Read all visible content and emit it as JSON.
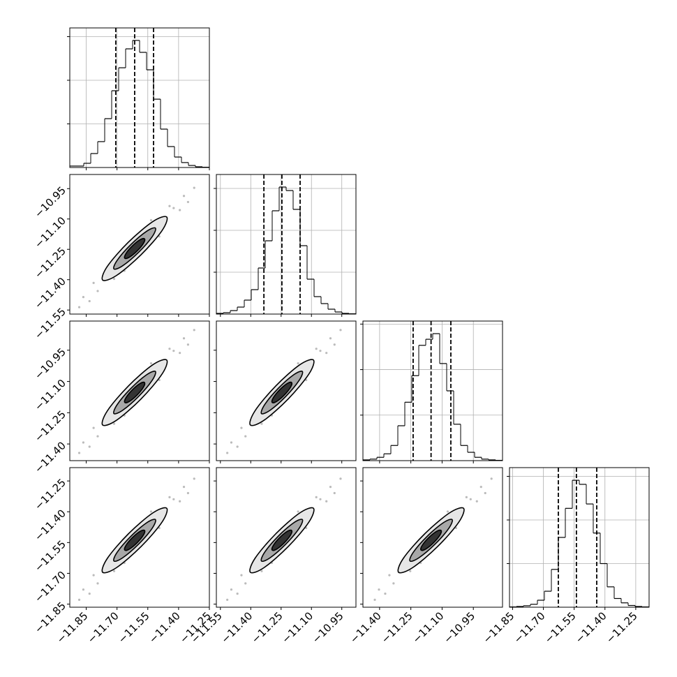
{
  "chart_data": {
    "type": "corner",
    "color": "#000000",
    "grid": true,
    "parameters": [
      {
        "lim": [
          -11.93,
          -11.25
        ],
        "ticks": [
          {
            "value": -11.85,
            "label": "−11.85"
          },
          {
            "value": -11.7,
            "label": "−11.70"
          },
          {
            "value": -11.55,
            "label": "−11.55"
          },
          {
            "value": -11.4,
            "label": "−11.40"
          },
          {
            "value": -11.25,
            "label": "−11.25"
          }
        ]
      },
      {
        "lim": [
          -11.57,
          -10.88
        ],
        "ticks": [
          {
            "value": -11.55,
            "label": "−11.55"
          },
          {
            "value": -11.4,
            "label": "−11.40"
          },
          {
            "value": -11.25,
            "label": "−11.25"
          },
          {
            "value": -11.1,
            "label": "−11.10"
          },
          {
            "value": -10.95,
            "label": "−10.95"
          }
        ]
      },
      {
        "lim": [
          -11.48,
          -10.81
        ],
        "ticks": [
          {
            "value": -11.4,
            "label": "−11.40"
          },
          {
            "value": -11.25,
            "label": "−11.25"
          },
          {
            "value": -11.1,
            "label": "−11.10"
          },
          {
            "value": -10.95,
            "label": "−10.95"
          }
        ]
      },
      {
        "lim": [
          -11.865,
          -11.185
        ],
        "ticks": [
          {
            "value": -11.85,
            "label": "−11.85"
          },
          {
            "value": -11.7,
            "label": "−11.70"
          },
          {
            "value": -11.55,
            "label": "−11.55"
          },
          {
            "value": -11.4,
            "label": "−11.40"
          },
          {
            "value": -11.25,
            "label": "−11.25"
          }
        ]
      }
    ],
    "histograms": [
      {
        "bins": [
          -11.93,
          -11.896,
          -11.862,
          -11.828,
          -11.794,
          -11.76,
          -11.726,
          -11.692,
          -11.658,
          -11.624,
          -11.59,
          -11.556,
          -11.522,
          -11.488,
          -11.454,
          -11.42,
          -11.386,
          -11.352,
          -11.318,
          -11.284,
          -11.25
        ],
        "counts": [
          10,
          10,
          29,
          96,
          178,
          336,
          528,
          686,
          816,
          874,
          792,
          672,
          470,
          264,
          144,
          72,
          34,
          14,
          5,
          2
        ],
        "ylim": [
          0,
          960
        ],
        "yticks": [
          300,
          600,
          900
        ],
        "quantiles": [
          -11.706,
          -11.614,
          -11.522
        ]
      },
      {
        "bins": [
          -11.57,
          -11.5355,
          -11.501,
          -11.4665,
          -11.432,
          -11.3975,
          -11.363,
          -11.3285,
          -11.294,
          -11.2595,
          -11.225,
          -11.1905,
          -11.156,
          -11.1215,
          -11.087,
          -11.0525,
          -11.018,
          -10.9835,
          -10.949,
          -10.9145,
          -10.88
        ],
        "counts": [
          5,
          10,
          25,
          50,
          100,
          175,
          330,
          525,
          740,
          910,
          885,
          750,
          490,
          250,
          125,
          75,
          35,
          15,
          5,
          2
        ],
        "ylim": [
          0,
          1000
        ],
        "yticks": [
          300,
          600,
          900
        ],
        "quantiles": [
          -11.335,
          -11.246,
          -11.156
        ]
      },
      {
        "bins": [
          -11.48,
          -11.4465,
          -11.413,
          -11.3795,
          -11.346,
          -11.3125,
          -11.279,
          -11.2455,
          -11.212,
          -11.1785,
          -11.145,
          -11.1115,
          -11.078,
          -11.0445,
          -11.011,
          -10.9775,
          -10.944,
          -10.9105,
          -10.877,
          -10.8435,
          -10.81
        ],
        "counts": [
          5,
          10,
          22,
          45,
          100,
          230,
          385,
          560,
          760,
          800,
          837,
          640,
          460,
          240,
          100,
          55,
          22,
          10,
          5,
          2
        ],
        "ylim": [
          0,
          920
        ],
        "yticks": [
          300,
          600,
          900
        ],
        "quantiles": [
          -11.239,
          -11.153,
          -11.058
        ]
      },
      {
        "bins": [
          -11.865,
          -11.831,
          -11.797,
          -11.763,
          -11.729,
          -11.695,
          -11.661,
          -11.627,
          -11.593,
          -11.559,
          -11.525,
          -11.491,
          -11.457,
          -11.423,
          -11.389,
          -11.355,
          -11.321,
          -11.287,
          -11.253,
          -11.219,
          -11.185
        ],
        "counts": [
          2,
          5,
          10,
          20,
          48,
          110,
          260,
          480,
          680,
          873,
          845,
          710,
          510,
          300,
          140,
          60,
          30,
          12,
          5,
          2
        ],
        "ylim": [
          0,
          960
        ],
        "yticks": [
          300,
          600,
          900
        ],
        "quantiles": [
          -11.627,
          -11.539,
          -11.44
        ]
      }
    ],
    "panels": [
      {
        "x_param": 0,
        "y_param": 1,
        "contours": [
          {
            "x": [
              -11.458,
              -11.481,
              -11.583,
              -11.702,
              -11.77,
              -11.747,
              -11.645,
              -11.526
            ],
            "y": [
              -11.09,
              -11.158,
              -11.277,
              -11.379,
              -11.402,
              -11.334,
              -11.215,
              -11.113
            ]
          },
          {
            "x": [
              -11.513,
              -11.529,
              -11.595,
              -11.672,
              -11.715,
              -11.699,
              -11.633,
              -11.556
            ],
            "y": [
              -11.145,
              -11.188,
              -11.265,
              -11.331,
              -11.347,
              -11.304,
              -11.227,
              -11.161
            ]
          },
          {
            "x": [
              -11.566,
              -11.571,
              -11.602,
              -11.64,
              -11.662,
              -11.657,
              -11.626,
              -11.588
            ],
            "y": [
              -11.198,
              -11.22,
              -11.258,
              -11.289,
              -11.294,
              -11.272,
              -11.234,
              -11.203
            ]
          }
        ],
        "points": {
          "x": [
            -11.864,
            -11.834,
            -11.814,
            -11.794,
            -11.424,
            -11.394,
            -11.374,
            -11.444,
            -11.354,
            -11.884,
            -11.534,
            -11.714,
            -11.494,
            -11.664,
            -11.324
          ],
          "y": [
            -11.486,
            -11.506,
            -11.416,
            -11.456,
            -11.046,
            -11.056,
            -10.986,
            -11.036,
            -11.016,
            -11.536,
            -11.106,
            -11.396,
            -11.186,
            -11.356,
            -10.946
          ]
        }
      },
      {
        "x_param": 0,
        "y_param": 2,
        "contours": [
          {
            "x": [
              -11.458,
              -11.481,
              -11.583,
              -11.702,
              -11.77,
              -11.747,
              -11.645,
              -11.526
            ],
            "y": [
              -10.997,
              -11.065,
              -11.184,
              -11.286,
              -11.309,
              -11.241,
              -11.122,
              -11.02
            ]
          },
          {
            "x": [
              -11.513,
              -11.529,
              -11.595,
              -11.672,
              -11.715,
              -11.699,
              -11.633,
              -11.556
            ],
            "y": [
              -11.052,
              -11.095,
              -11.172,
              -11.238,
              -11.254,
              -11.211,
              -11.134,
              -11.068
            ]
          },
          {
            "x": [
              -11.566,
              -11.571,
              -11.602,
              -11.64,
              -11.662,
              -11.657,
              -11.626,
              -11.588
            ],
            "y": [
              -11.105,
              -11.127,
              -11.165,
              -11.196,
              -11.201,
              -11.179,
              -11.141,
              -11.11
            ]
          }
        ],
        "points": {
          "x": [
            -11.864,
            -11.834,
            -11.814,
            -11.794,
            -11.424,
            -11.394,
            -11.374,
            -11.444,
            -11.354,
            -11.884,
            -11.534,
            -11.714,
            -11.494,
            -11.664,
            -11.324
          ],
          "y": [
            -11.393,
            -11.413,
            -11.323,
            -11.363,
            -10.953,
            -10.963,
            -10.893,
            -10.943,
            -10.923,
            -11.443,
            -11.013,
            -11.303,
            -11.093,
            -11.263,
            -10.853
          ]
        }
      },
      {
        "x_param": 1,
        "y_param": 2,
        "contours": [
          {
            "x": [
              -11.09,
              -11.113,
              -11.215,
              -11.334,
              -11.402,
              -11.379,
              -11.277,
              -11.158
            ],
            "y": [
              -10.997,
              -11.065,
              -11.184,
              -11.286,
              -11.309,
              -11.241,
              -11.122,
              -11.02
            ]
          },
          {
            "x": [
              -11.145,
              -11.161,
              -11.227,
              -11.304,
              -11.347,
              -11.331,
              -11.265,
              -11.188
            ],
            "y": [
              -11.052,
              -11.095,
              -11.172,
              -11.238,
              -11.254,
              -11.211,
              -11.134,
              -11.068
            ]
          },
          {
            "x": [
              -11.198,
              -11.203,
              -11.234,
              -11.272,
              -11.294,
              -11.289,
              -11.258,
              -11.22
            ],
            "y": [
              -11.105,
              -11.127,
              -11.165,
              -11.196,
              -11.201,
              -11.179,
              -11.141,
              -11.11
            ]
          }
        ],
        "points": {
          "x": [
            -11.496,
            -11.466,
            -11.446,
            -11.426,
            -11.056,
            -11.026,
            -11.006,
            -11.076,
            -10.986,
            -11.516,
            -11.166,
            -11.346,
            -11.126,
            -11.296,
            -10.956
          ],
          "y": [
            -11.393,
            -11.413,
            -11.323,
            -11.363,
            -10.953,
            -10.963,
            -10.893,
            -10.943,
            -10.923,
            -11.443,
            -11.013,
            -11.303,
            -11.093,
            -11.263,
            -10.853
          ]
        }
      },
      {
        "x_param": 0,
        "y_param": 3,
        "contours": [
          {
            "x": [
              -11.458,
              -11.481,
              -11.583,
              -11.702,
              -11.77,
              -11.747,
              -11.645,
              -11.526
            ],
            "y": [
              -11.383,
              -11.451,
              -11.57,
              -11.672,
              -11.695,
              -11.627,
              -11.508,
              -11.406
            ]
          },
          {
            "x": [
              -11.513,
              -11.529,
              -11.595,
              -11.672,
              -11.715,
              -11.699,
              -11.633,
              -11.556
            ],
            "y": [
              -11.438,
              -11.481,
              -11.558,
              -11.624,
              -11.64,
              -11.597,
              -11.52,
              -11.454
            ]
          },
          {
            "x": [
              -11.566,
              -11.571,
              -11.602,
              -11.64,
              -11.662,
              -11.657,
              -11.626,
              -11.588
            ],
            "y": [
              -11.491,
              -11.513,
              -11.551,
              -11.582,
              -11.587,
              -11.565,
              -11.527,
              -11.496
            ]
          }
        ],
        "points": {
          "x": [
            -11.864,
            -11.834,
            -11.814,
            -11.794,
            -11.424,
            -11.394,
            -11.374,
            -11.444,
            -11.354,
            -11.884,
            -11.534,
            -11.714,
            -11.494,
            -11.664,
            -11.324
          ],
          "y": [
            -11.779,
            -11.799,
            -11.709,
            -11.749,
            -11.339,
            -11.349,
            -11.279,
            -11.329,
            -11.309,
            -11.829,
            -11.399,
            -11.689,
            -11.479,
            -11.649,
            -11.239
          ]
        }
      },
      {
        "x_param": 1,
        "y_param": 3,
        "contours": [
          {
            "x": [
              -11.09,
              -11.113,
              -11.215,
              -11.334,
              -11.402,
              -11.379,
              -11.277,
              -11.158
            ],
            "y": [
              -11.383,
              -11.451,
              -11.57,
              -11.672,
              -11.695,
              -11.627,
              -11.508,
              -11.406
            ]
          },
          {
            "x": [
              -11.145,
              -11.161,
              -11.227,
              -11.304,
              -11.347,
              -11.331,
              -11.265,
              -11.188
            ],
            "y": [
              -11.438,
              -11.481,
              -11.558,
              -11.624,
              -11.64,
              -11.597,
              -11.52,
              -11.454
            ]
          },
          {
            "x": [
              -11.198,
              -11.203,
              -11.234,
              -11.272,
              -11.294,
              -11.289,
              -11.258,
              -11.22
            ],
            "y": [
              -11.491,
              -11.513,
              -11.551,
              -11.582,
              -11.587,
              -11.565,
              -11.527,
              -11.496
            ]
          }
        ],
        "points": {
          "x": [
            -11.496,
            -11.466,
            -11.446,
            -11.426,
            -11.056,
            -11.026,
            -11.006,
            -11.076,
            -10.986,
            -11.516,
            -11.166,
            -11.346,
            -11.126,
            -11.296,
            -10.956
          ],
          "y": [
            -11.779,
            -11.799,
            -11.709,
            -11.749,
            -11.339,
            -11.349,
            -11.279,
            -11.329,
            -11.309,
            -11.829,
            -11.399,
            -11.689,
            -11.479,
            -11.649,
            -11.239
          ]
        }
      },
      {
        "x_param": 2,
        "y_param": 3,
        "contours": [
          {
            "x": [
              -10.997,
              -11.02,
              -11.122,
              -11.241,
              -11.309,
              -11.286,
              -11.184,
              -11.065
            ],
            "y": [
              -11.383,
              -11.451,
              -11.57,
              -11.672,
              -11.695,
              -11.627,
              -11.508,
              -11.406
            ]
          },
          {
            "x": [
              -11.052,
              -11.068,
              -11.134,
              -11.211,
              -11.254,
              -11.238,
              -11.172,
              -11.095
            ],
            "y": [
              -11.438,
              -11.481,
              -11.558,
              -11.624,
              -11.64,
              -11.597,
              -11.52,
              -11.454
            ]
          },
          {
            "x": [
              -11.105,
              -11.11,
              -11.141,
              -11.179,
              -11.201,
              -11.196,
              -11.165,
              -11.127
            ],
            "y": [
              -11.491,
              -11.513,
              -11.551,
              -11.582,
              -11.587,
              -11.565,
              -11.527,
              -11.496
            ]
          }
        ],
        "points": {
          "x": [
            -11.403,
            -11.373,
            -11.353,
            -11.333,
            -10.963,
            -10.933,
            -10.913,
            -10.983,
            -10.893,
            -11.423,
            -11.073,
            -11.253,
            -11.033,
            -11.203,
            -10.863
          ],
          "y": [
            -11.779,
            -11.799,
            -11.709,
            -11.749,
            -11.339,
            -11.349,
            -11.279,
            -11.329,
            -11.309,
            -11.829,
            -11.399,
            -11.689,
            -11.479,
            -11.649,
            -11.239
          ]
        }
      }
    ]
  }
}
